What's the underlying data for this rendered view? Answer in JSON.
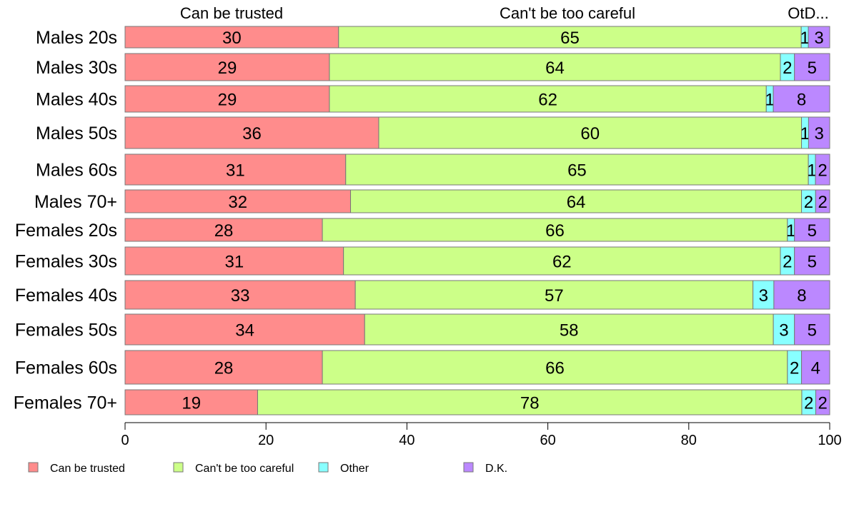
{
  "chart_data": {
    "type": "bar",
    "orientation": "horizontal",
    "stacked": true,
    "categories": [
      "Males 20s",
      "Males 30s",
      "Males 40s",
      "Males 50s",
      "Males 60s",
      "Males 70+",
      "Females 20s",
      "Females 30s",
      "Females 40s",
      "Females 50s",
      "Females 60s",
      "Females 70+"
    ],
    "series": [
      {
        "name": "Can be trusted",
        "color": "#FF8C8C",
        "values": [
          30,
          29,
          29,
          36,
          31,
          32,
          28,
          31,
          33,
          34,
          28,
          19
        ]
      },
      {
        "name": "Can't be too careful",
        "color": "#CCFF88",
        "values": [
          65,
          64,
          62,
          60,
          65,
          64,
          66,
          62,
          57,
          58,
          66,
          78
        ]
      },
      {
        "name": "Other",
        "color": "#88FFFF",
        "values": [
          1,
          2,
          1,
          1,
          1,
          2,
          1,
          2,
          3,
          3,
          2,
          2
        ]
      },
      {
        "name": "D.K.",
        "color": "#BB88FF",
        "values": [
          3,
          5,
          8,
          3,
          2,
          2,
          5,
          5,
          8,
          5,
          4,
          2
        ]
      }
    ],
    "top_labels": [
      "Can be trusted",
      "Can't be too careful",
      "OtD..."
    ],
    "xlim": [
      0,
      100
    ],
    "xticks": [
      0,
      20,
      40,
      60,
      80,
      100
    ],
    "grid": false,
    "legend_position": "bottom"
  }
}
